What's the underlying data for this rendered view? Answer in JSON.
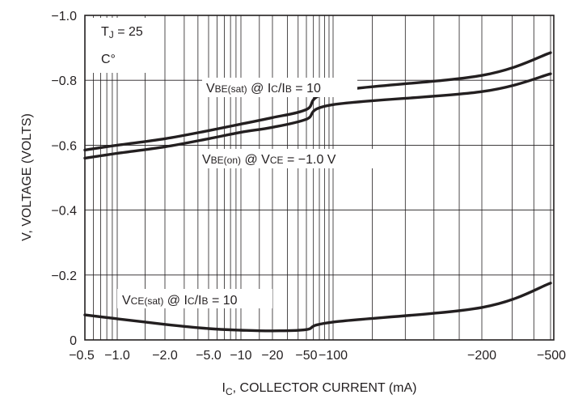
{
  "chart_data": {
    "type": "line",
    "xlabel": "I",
    "xlabel_sub": "C",
    "xlabel_rest": ", COLLECTOR CURRENT (mA)",
    "ylabel": "V, VOLTAGE (VOLTS)",
    "ylim": [
      0,
      -1.0
    ],
    "y_ticks": [
      {
        "value": -1.0,
        "label": "−1.0"
      },
      {
        "value": -0.8,
        "label": "−0.8"
      },
      {
        "value": -0.6,
        "label": "−0.6"
      },
      {
        "value": -0.4,
        "label": "−0.4"
      },
      {
        "value": -0.2,
        "label": "−0.2"
      },
      {
        "value": 0,
        "label": "0"
      }
    ],
    "x_ticks": [
      {
        "value": -0.5,
        "label": "−0.5"
      },
      {
        "value": -1.0,
        "label": "−1.0"
      },
      {
        "value": -2.0,
        "label": "−2.0"
      },
      {
        "value": -5.0,
        "label": "−5.0"
      },
      {
        "value": -10,
        "label": "−10"
      },
      {
        "value": -20,
        "label": "−20"
      },
      {
        "value": -50,
        "label": "−50"
      },
      {
        "value": -100,
        "label": "−100"
      },
      {
        "value": -200,
        "label": "−200"
      },
      {
        "value": -500,
        "label": "−500"
      }
    ],
    "grid": true,
    "series": [
      {
        "name": "VBE(sat) @ IC/IB = 10",
        "x": [
          -0.5,
          -1.0,
          -2.0,
          -5.0,
          -10,
          -20,
          -50,
          -100,
          -200,
          -500
        ],
        "y": [
          -0.585,
          -0.6,
          -0.62,
          -0.645,
          -0.665,
          -0.685,
          -0.71,
          -0.765,
          -0.815,
          -0.885
        ]
      },
      {
        "name": "VBE(on) @ VCE = −1.0 V",
        "x": [
          -0.5,
          -1.0,
          -2.0,
          -5.0,
          -10,
          -20,
          -50,
          -100,
          -200,
          -500
        ],
        "y": [
          -0.56,
          -0.575,
          -0.595,
          -0.62,
          -0.64,
          -0.655,
          -0.68,
          -0.725,
          -0.765,
          -0.82
        ]
      },
      {
        "name": "VCE(sat) @ IC/IB = 10",
        "x": [
          -0.5,
          -1.0,
          -2.0,
          -5.0,
          -10,
          -20,
          -50,
          -100,
          -200,
          -500
        ],
        "y": [
          -0.077,
          -0.065,
          -0.048,
          -0.035,
          -0.03,
          -0.028,
          -0.032,
          -0.055,
          -0.1,
          -0.175
        ]
      }
    ],
    "annotations": {
      "tj_prefix": "T",
      "tj_sub": "J",
      "tj_rest": " = 25",
      "tj_unit": "C°",
      "vbe_sat": {
        "p1": "V",
        "s1": "BE(sat)",
        "p2": " @ I",
        "s2": "C",
        "p3": "/I",
        "s3": "B",
        "p4": " = 10"
      },
      "vbe_on": {
        "p1": "V",
        "s1": "BE(on)",
        "p2": " @ V",
        "s2": "CE",
        "p3": " = −1.0 V"
      },
      "vce_sat": {
        "p1": "V",
        "s1": "CE(sat)",
        "p2": " @ I",
        "s2": "C",
        "p3": "/I",
        "s3": "B",
        "p4": " = 10"
      }
    }
  }
}
